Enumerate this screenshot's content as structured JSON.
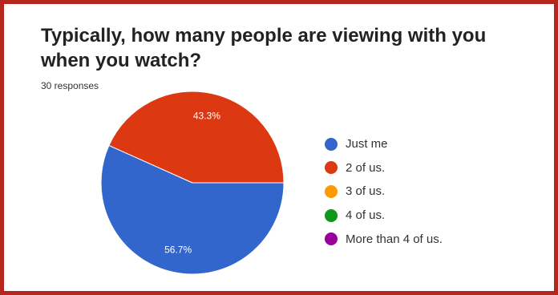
{
  "chart_data": {
    "type": "pie",
    "title": "Typically, how many people are viewing with you when you watch?",
    "subtitle": "30 responses",
    "categories": [
      "Just me",
      "2 of us.",
      "3 of us.",
      "4 of us.",
      "More than 4 of us."
    ],
    "values": [
      56.7,
      43.3,
      0,
      0,
      0
    ],
    "labels": [
      "56.7%",
      "43.3%",
      "",
      "",
      ""
    ],
    "colors": [
      "#3366cc",
      "#dc3912",
      "#ff9900",
      "#109618",
      "#990099"
    ],
    "legend_position": "right"
  }
}
